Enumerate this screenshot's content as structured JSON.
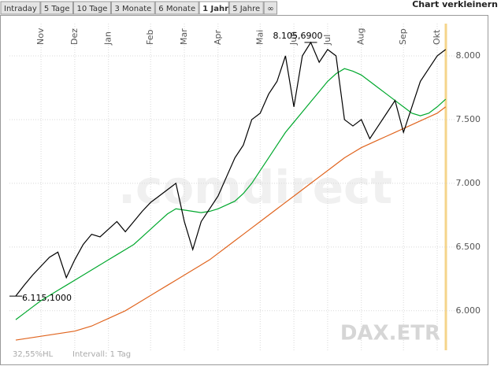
{
  "tabs": [
    {
      "label": "Intraday",
      "active": false
    },
    {
      "label": "5 Tage",
      "active": false
    },
    {
      "label": "10 Tage",
      "active": false
    },
    {
      "label": "3 Monate",
      "active": false
    },
    {
      "label": "6 Monate",
      "active": false
    },
    {
      "label": "1 Jahr",
      "active": true
    },
    {
      "label": "5 Jahre",
      "active": false
    },
    {
      "label": "∞",
      "active": false
    }
  ],
  "shrink_link": "Chart verkleinern",
  "chart_data": {
    "type": "line",
    "watermark": ".comdirect",
    "symbol": "DAX.ETR",
    "footer_left": "32,55%HL",
    "interval": "Intervall: 1 Tag",
    "categories": [
      null,
      null,
      null,
      "Nov",
      null,
      null,
      null,
      "Dez",
      null,
      null,
      null,
      "Jan",
      null,
      null,
      null,
      null,
      "Feb",
      null,
      null,
      null,
      "Mar",
      null,
      null,
      null,
      "Apr",
      null,
      null,
      null,
      null,
      "Mai",
      null,
      null,
      null,
      "Jun",
      null,
      null,
      null,
      "Jul",
      null,
      null,
      null,
      "Aug",
      null,
      null,
      null,
      null,
      "Sep",
      null,
      null,
      null,
      "Okt",
      null
    ],
    "series": [
      {
        "color": "#000000",
        "values": [
          6115.1,
          6200,
          6280,
          6350,
          6420,
          6460,
          6260,
          6400,
          6520,
          6600,
          6580,
          6640,
          6700,
          6620,
          6700,
          6780,
          6850,
          6900,
          6950,
          7000,
          6700,
          6480,
          6700,
          6800,
          6900,
          7050,
          7200,
          7300,
          7500,
          7550,
          7700,
          7800,
          8000,
          7600,
          8000,
          8105.69,
          7950,
          8050,
          8000,
          7500,
          7450,
          7500,
          7350,
          7450,
          7550,
          7650,
          7400,
          7600,
          7800,
          7900,
          8000,
          8050
        ],
        "value_labels": [
          "6.115,1000",
          null,
          null,
          null,
          null,
          null,
          null,
          null,
          null,
          null,
          null,
          null,
          null,
          null,
          null,
          null,
          null,
          null,
          null,
          null,
          null,
          null,
          null,
          null,
          null,
          null,
          null,
          null,
          null,
          null,
          null,
          null,
          null,
          null,
          null,
          "8.105,6900",
          null,
          null,
          null,
          null,
          null,
          null,
          null,
          null,
          null,
          null,
          null,
          null,
          null,
          null,
          null,
          null
        ]
      },
      {
        "color": "#00a82d",
        "values": [
          5930,
          5980,
          6030,
          6080,
          6120,
          6160,
          6200,
          6240,
          6280,
          6320,
          6360,
          6400,
          6440,
          6480,
          6520,
          6580,
          6640,
          6700,
          6760,
          6800,
          6790,
          6780,
          6770,
          6780,
          6800,
          6830,
          6860,
          6920,
          7000,
          7100,
          7200,
          7300,
          7400,
          7480,
          7560,
          7640,
          7720,
          7800,
          7860,
          7900,
          7880,
          7850,
          7800,
          7750,
          7700,
          7650,
          7600,
          7550,
          7530,
          7550,
          7600,
          7660
        ]
      },
      {
        "color": "#e0641e",
        "values": [
          5770,
          5780,
          5790,
          5800,
          5810,
          5820,
          5830,
          5840,
          5860,
          5880,
          5910,
          5940,
          5970,
          6000,
          6040,
          6080,
          6120,
          6160,
          6200,
          6240,
          6280,
          6320,
          6360,
          6400,
          6450,
          6500,
          6550,
          6600,
          6650,
          6700,
          6750,
          6800,
          6850,
          6900,
          6950,
          7000,
          7050,
          7100,
          7150,
          7200,
          7240,
          7280,
          7310,
          7340,
          7370,
          7400,
          7430,
          7460,
          7490,
          7520,
          7550,
          7600
        ]
      }
    ],
    "ylim": [
      5690,
      8315
    ],
    "yticks": [
      {
        "value": 6000,
        "label": "6.000"
      },
      {
        "value": 6500,
        "label": "6.500"
      },
      {
        "value": 7000,
        "label": "7.000"
      },
      {
        "value": 7500,
        "label": "7.500"
      },
      {
        "value": 8000,
        "label": "8.000"
      }
    ],
    "grid": true
  }
}
